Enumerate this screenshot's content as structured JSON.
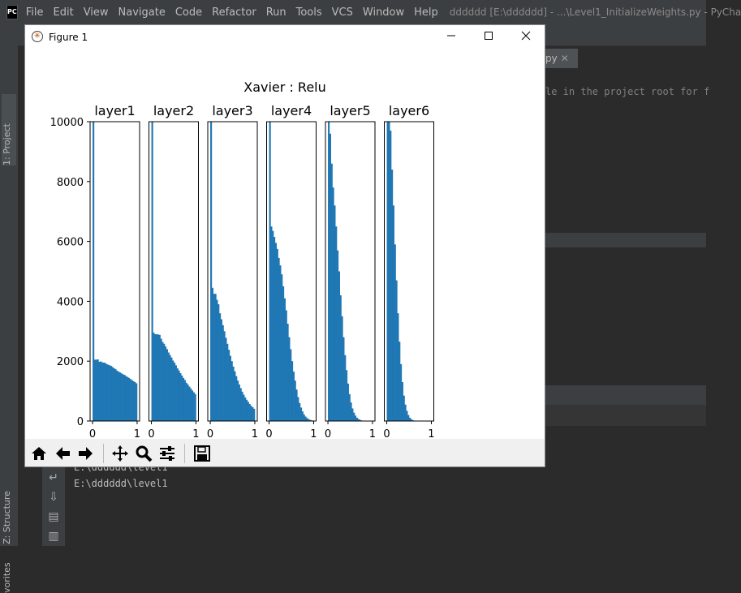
{
  "ide": {
    "logo": "PC",
    "menu": [
      "File",
      "Edit",
      "View",
      "Navigate",
      "Code",
      "Refactor",
      "Run",
      "Tools",
      "VCS",
      "Window",
      "Help"
    ],
    "window_title": "dddddd [E:\\dddddd] - ...\\Level1_InitializeWeights.py - PyCha",
    "editor_tab": "py",
    "editor_line": "le in the project root for f",
    "side_tabs": {
      "project": "1: Project",
      "structure": "Z: Structure",
      "favorites": "vorites"
    },
    "console_lines": [
      "E:\\dddddd\\level1",
      "E:\\dddddd\\level1"
    ]
  },
  "figure": {
    "window_title": "Figure 1",
    "toolbar": [
      {
        "name": "home-icon"
      },
      {
        "name": "back-icon"
      },
      {
        "name": "forward-icon"
      },
      {
        "name": "pan-icon"
      },
      {
        "name": "zoom-icon"
      },
      {
        "name": "configure-subplots-icon"
      },
      {
        "name": "save-icon"
      }
    ]
  },
  "chart_data": {
    "type": "bar",
    "title": "Xavier : Relu",
    "bar_color": "#1f77b4",
    "bins": 30,
    "xlim": [
      0,
      1
    ],
    "ylim": [
      0,
      10000
    ],
    "xticks": [
      "0",
      "1"
    ],
    "yticks": [
      "0",
      "2000",
      "4000",
      "6000",
      "8000",
      "10000"
    ],
    "series": [
      {
        "name": "layer1",
        "values": [
          10000,
          2050,
          2050,
          2060,
          1980,
          1990,
          1960,
          1950,
          1940,
          1900,
          1880,
          1860,
          1840,
          1800,
          1760,
          1730,
          1680,
          1650,
          1620,
          1590,
          1560,
          1540,
          1500,
          1470,
          1440,
          1400,
          1370,
          1330,
          1300,
          1260
        ]
      },
      {
        "name": "layer2",
        "values": [
          10000,
          2950,
          2900,
          2900,
          2890,
          2880,
          2750,
          2640,
          2580,
          2490,
          2400,
          2290,
          2200,
          2120,
          2020,
          1950,
          1860,
          1760,
          1690,
          1600,
          1520,
          1440,
          1370,
          1280,
          1220,
          1150,
          1090,
          1020,
          960,
          900
        ]
      },
      {
        "name": "layer3",
        "values": [
          10000,
          4450,
          4250,
          4250,
          4050,
          3900,
          3600,
          3400,
          3200,
          3000,
          2780,
          2580,
          2380,
          2180,
          2000,
          1820,
          1660,
          1500,
          1350,
          1220,
          1100,
          980,
          880,
          790,
          710,
          640,
          570,
          510,
          460,
          410
        ]
      },
      {
        "name": "layer4",
        "values": [
          10000,
          6500,
          6350,
          6150,
          5950,
          5750,
          5450,
          5200,
          4900,
          4500,
          4100,
          3700,
          3250,
          2800,
          2400,
          2000,
          1650,
          1350,
          1050,
          800,
          600,
          450,
          320,
          220,
          150,
          100,
          65,
          40,
          25,
          15
        ]
      },
      {
        "name": "layer5",
        "values": [
          10000,
          9600,
          8600,
          7800,
          7200,
          6500,
          5700,
          5000,
          4200,
          3500,
          2800,
          2200,
          1700,
          1250,
          900,
          620,
          420,
          280,
          180,
          110,
          70,
          40,
          22,
          12,
          6,
          3,
          1,
          0,
          0,
          0
        ]
      },
      {
        "name": "layer6",
        "values": [
          10000,
          10000,
          9700,
          8400,
          7200,
          5900,
          4700,
          3600,
          2650,
          1900,
          1300,
          850,
          550,
          340,
          200,
          110,
          60,
          30,
          15,
          7,
          3,
          1,
          0,
          0,
          0,
          0,
          0,
          0,
          0,
          0
        ]
      }
    ]
  }
}
